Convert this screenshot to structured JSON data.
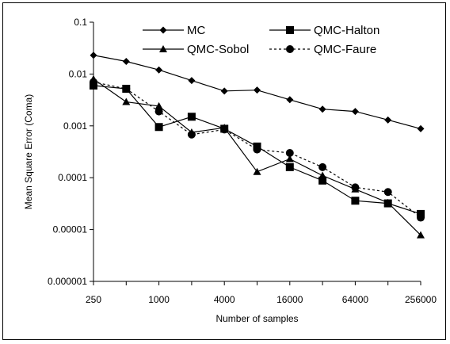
{
  "chart_data": {
    "type": "line",
    "xlabel": "Number of samples",
    "ylabel": "Mean Square Error (Coma)",
    "x_scale": "log2",
    "y_scale": "log10",
    "x_ticks": [
      "250",
      "1000",
      "4000",
      "16000",
      "64000",
      "256000"
    ],
    "y_ticks": [
      "0.000001",
      "0.00001",
      "0.0001",
      "0.001",
      "0.01",
      "0.1"
    ],
    "xlim": [
      250,
      256000
    ],
    "ylim": [
      1e-06,
      0.1
    ],
    "grid": false,
    "legend_position": "top",
    "x": [
      250,
      500,
      1000,
      2000,
      4000,
      8000,
      16000,
      32000,
      64000,
      128000,
      256000
    ],
    "series": [
      {
        "name": "MC",
        "marker": "diamond",
        "dash": "solid",
        "values": [
          0.023,
          0.0175,
          0.012,
          0.0075,
          0.0047,
          0.0049,
          0.0032,
          0.0021,
          0.0019,
          0.0013,
          0.00088
        ]
      },
      {
        "name": "QMC-Halton",
        "marker": "square",
        "dash": "solid",
        "values": [
          0.006,
          0.0052,
          0.00095,
          0.0015,
          0.00088,
          0.0004,
          0.00016,
          8.8e-05,
          3.6e-05,
          3.2e-05,
          2e-05
        ]
      },
      {
        "name": "QMC-Sobol",
        "marker": "triangle",
        "dash": "solid",
        "values": [
          0.008,
          0.0029,
          0.0024,
          0.00075,
          0.00092,
          0.00013,
          0.00023,
          0.00011,
          6e-05,
          3.3e-05,
          7.8e-06
        ]
      },
      {
        "name": "QMC-Faure",
        "marker": "circle",
        "dash": "dotted",
        "values": [
          0.007,
          0.0052,
          0.0019,
          0.00068,
          0.00085,
          0.00035,
          0.0003,
          0.00016,
          6.5e-05,
          5.3e-05,
          1.7e-05
        ]
      }
    ]
  }
}
